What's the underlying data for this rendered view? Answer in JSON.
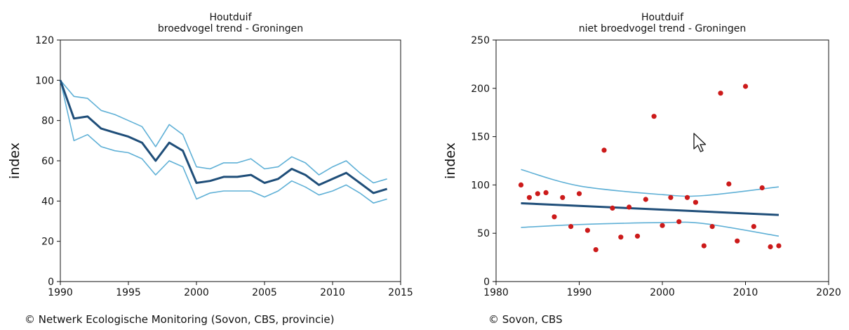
{
  "chart_data": [
    {
      "type": "line",
      "title": "Houtduif",
      "subtitle": "broedvogel trend - Groningen",
      "ylabel": "index",
      "xlabel": "",
      "xlim": [
        1990,
        2015
      ],
      "ylim": [
        0,
        120
      ],
      "xticks": [
        1990,
        1995,
        2000,
        2005,
        2010,
        2015
      ],
      "yticks": [
        0,
        20,
        40,
        60,
        80,
        100,
        120
      ],
      "grid": false,
      "x": [
        1990,
        1991,
        1992,
        1993,
        1994,
        1995,
        1996,
        1997,
        1998,
        1999,
        2000,
        2001,
        2002,
        2003,
        2004,
        2005,
        2006,
        2007,
        2008,
        2009,
        2010,
        2011,
        2012,
        2013,
        2014
      ],
      "series": [
        {
          "role": "trend",
          "color": "#1f4e79",
          "values": [
            100,
            81,
            82,
            76,
            74,
            72,
            69,
            60,
            69,
            65,
            49,
            50,
            52,
            52,
            53,
            49,
            51,
            56,
            53,
            48,
            51,
            54,
            49,
            44,
            46
          ]
        },
        {
          "role": "upper",
          "color": "#5fb0d6",
          "values": [
            100,
            92,
            91,
            85,
            83,
            80,
            77,
            67,
            78,
            73,
            57,
            56,
            59,
            59,
            61,
            56,
            57,
            62,
            59,
            53,
            57,
            60,
            54,
            49,
            51
          ]
        },
        {
          "role": "lower",
          "color": "#5fb0d6",
          "values": [
            100,
            70,
            73,
            67,
            65,
            64,
            61,
            53,
            60,
            57,
            41,
            44,
            45,
            45,
            45,
            42,
            45,
            50,
            47,
            43,
            45,
            48,
            44,
            39,
            41
          ]
        }
      ]
    },
    {
      "type": "scatter",
      "title": "Houtduif",
      "subtitle": "niet broedvogel trend - Groningen",
      "ylabel": "index",
      "xlabel": "",
      "xlim": [
        1980,
        2020
      ],
      "ylim": [
        0,
        250
      ],
      "xticks": [
        1980,
        1990,
        2000,
        2010,
        2020
      ],
      "yticks": [
        0,
        50,
        100,
        150,
        200,
        250
      ],
      "grid": false,
      "points": {
        "color": "#cc1a1a",
        "x": [
          1983,
          1984,
          1985,
          1986,
          1987,
          1988,
          1989,
          1990,
          1991,
          1992,
          1993,
          1994,
          1995,
          1996,
          1997,
          1998,
          1999,
          2000,
          2001,
          2002,
          2003,
          2004,
          2005,
          2006,
          2007,
          2008,
          2009,
          2010,
          2011,
          2012,
          2013,
          2014
        ],
        "y": [
          100,
          87,
          91,
          92,
          67,
          87,
          57,
          91,
          53,
          33,
          136,
          76,
          46,
          77,
          47,
          85,
          171,
          58,
          87,
          62,
          87,
          82,
          37,
          57,
          195,
          101,
          42,
          202,
          57,
          97,
          36,
          37
        ]
      },
      "trend": {
        "color": "#1f4e79",
        "x": [
          1983,
          2014
        ],
        "y": [
          81,
          69
        ]
      },
      "upper": {
        "color": "#5fb0d6",
        "x": [
          1983,
          1990,
          2000,
          2005,
          2014
        ],
        "y": [
          116,
          99,
          90,
          89,
          98
        ]
      },
      "lower": {
        "color": "#5fb0d6",
        "x": [
          1983,
          1990,
          2000,
          2005,
          2014
        ],
        "y": [
          56,
          59,
          61,
          60,
          47
        ]
      }
    }
  ],
  "credits": {
    "left": "© Netwerk Ecologische Monitoring (Sovon, CBS, provincie)",
    "right": "© Sovon, CBS"
  },
  "cursor": {
    "icon": "mouse-pointer-icon"
  }
}
